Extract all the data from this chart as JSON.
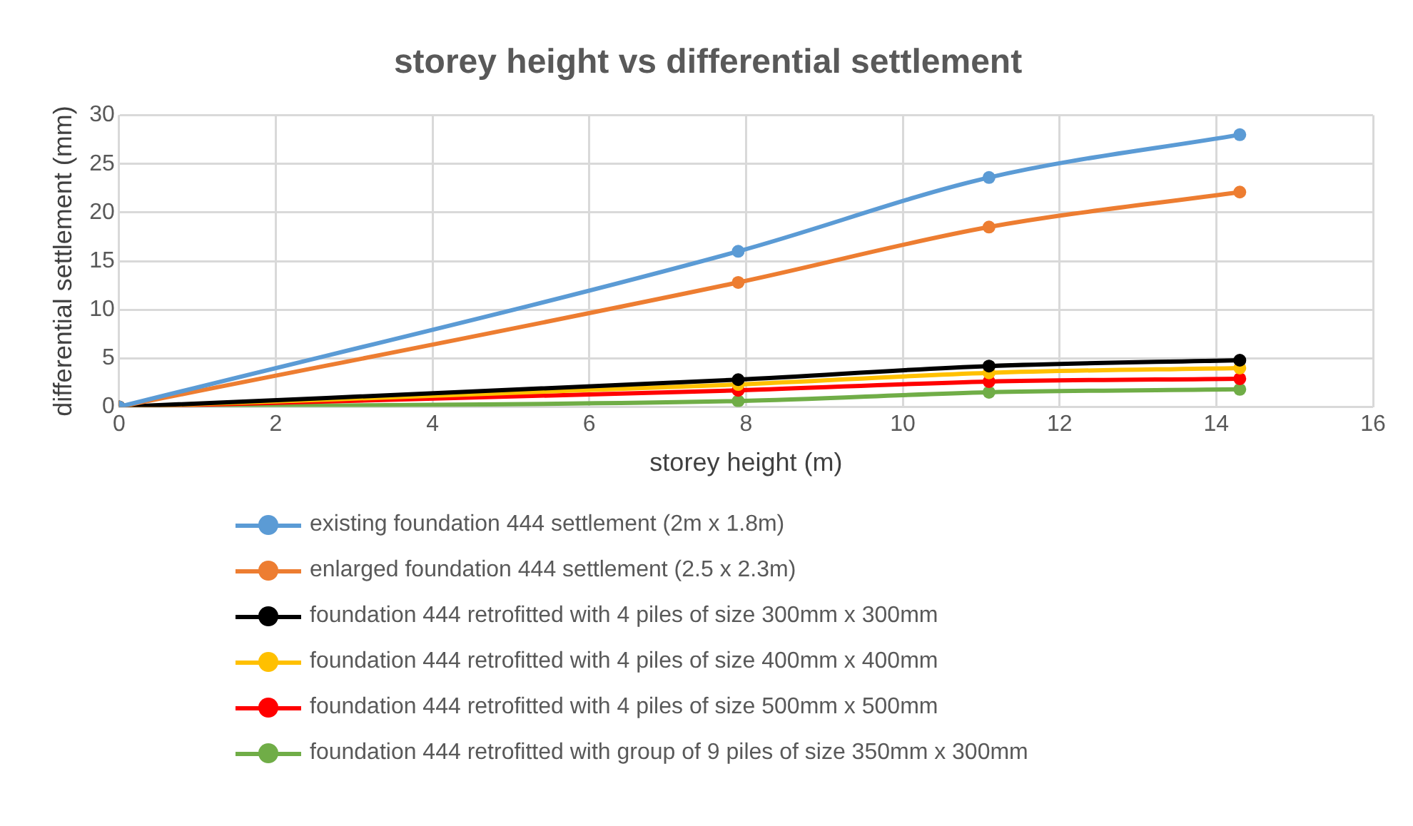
{
  "chart_data": {
    "type": "line",
    "title": "storey height vs differential settlement",
    "xlabel": "storey height (m)",
    "ylabel": "differential settlement (mm)",
    "x": [
      0,
      7.9,
      11.1,
      14.3
    ],
    "xlim": [
      0,
      16
    ],
    "xticks": [
      0,
      2,
      4,
      6,
      8,
      10,
      12,
      14,
      16
    ],
    "ylim": [
      0,
      30
    ],
    "yticks": [
      0,
      5,
      10,
      15,
      20,
      25,
      30
    ],
    "grid": true,
    "legend": "bottom",
    "marker": "circle",
    "line_style": "solid",
    "series": [
      {
        "name": "existing foundation 444 settlement (2m x 1.8m)",
        "color": "#5b9bd5",
        "values": [
          0,
          16.0,
          23.6,
          28.0
        ]
      },
      {
        "name": "enlarged foundation 444 settlement (2.5 x 2.3m)",
        "color": "#ed7d31",
        "values": [
          0,
          12.8,
          18.5,
          22.1
        ]
      },
      {
        "name": "foundation 444 retrofitted with 4 piles of size 300mm x 300mm",
        "color": "#000000",
        "values": [
          0,
          2.8,
          4.2,
          4.8
        ]
      },
      {
        "name": "foundation 444 retrofitted with 4 piles of size 400mm x 400mm",
        "color": "#ffc000",
        "values": [
          0,
          2.3,
          3.5,
          4.0
        ]
      },
      {
        "name": "foundation 444 retrofitted with 4 piles of size 500mm x 500mm",
        "color": "#ff0000",
        "values": [
          0,
          1.7,
          2.6,
          2.9
        ]
      },
      {
        "name": "foundation 444 retrofitted with group of 9 piles of size 350mm x 300mm",
        "color": "#70ad47",
        "values": [
          0,
          0.6,
          1.5,
          1.8
        ]
      }
    ]
  }
}
